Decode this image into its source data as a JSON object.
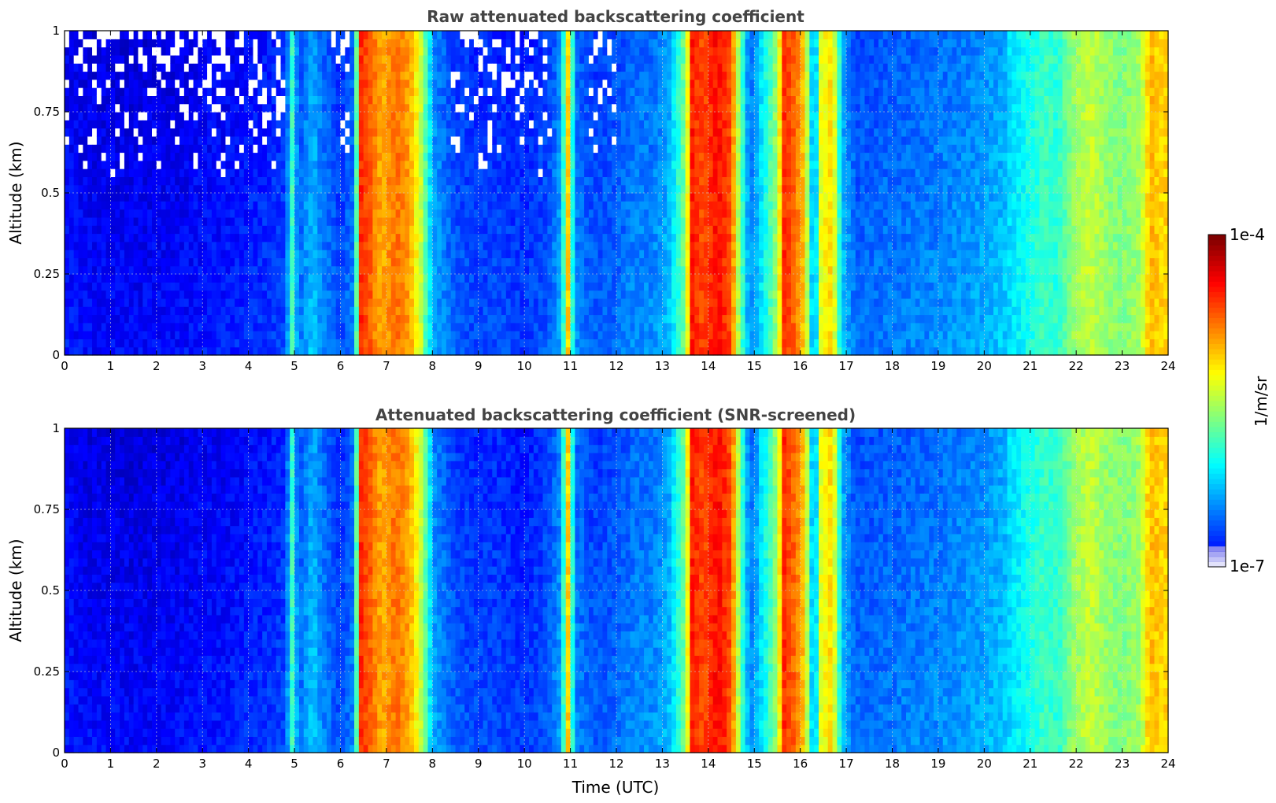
{
  "chart_data": [
    {
      "type": "heatmap",
      "title": "Raw attenuated backscattering coefficient",
      "xlabel": "",
      "ylabel": "Altitude (km)",
      "xlim": [
        0,
        24
      ],
      "ylim": [
        0,
        1
      ],
      "x_ticks": [
        "0",
        "1",
        "2",
        "3",
        "4",
        "5",
        "6",
        "7",
        "8",
        "9",
        "10",
        "11",
        "12",
        "13",
        "14",
        "15",
        "16",
        "17",
        "18",
        "19",
        "20",
        "21",
        "22",
        "23",
        "24"
      ],
      "y_ticks": [
        "0",
        "0.25",
        "0.5",
        "0.75",
        "1"
      ],
      "grid": true,
      "colormap": "jet",
      "color_scale": "log",
      "time_profile": {
        "x_hours": [
          0.0,
          0.5,
          1.0,
          1.5,
          2.0,
          2.5,
          3.0,
          3.5,
          4.0,
          4.5,
          4.8,
          4.95,
          5.1,
          5.4,
          5.6,
          6.0,
          6.3,
          6.45,
          6.6,
          6.9,
          7.2,
          7.5,
          7.75,
          8.0,
          8.5,
          9.0,
          9.5,
          10.0,
          10.5,
          10.8,
          10.95,
          11.1,
          11.5,
          12.0,
          12.4,
          12.8,
          13.2,
          13.5,
          13.65,
          13.9,
          14.2,
          14.5,
          14.7,
          14.9,
          15.2,
          15.5,
          15.65,
          15.9,
          16.1,
          16.3,
          16.45,
          16.7,
          16.9,
          17.2,
          18.0,
          19.0,
          20.0,
          20.5,
          21.0,
          21.3,
          21.6,
          22.0,
          22.3,
          22.7,
          23.0,
          23.4,
          23.6,
          23.8,
          24.0
        ],
        "log10_value": [
          -6.55,
          -6.6,
          -6.6,
          -6.62,
          -6.6,
          -6.6,
          -6.55,
          -6.55,
          -6.5,
          -6.45,
          -6.4,
          -5.7,
          -6.3,
          -6.0,
          -6.2,
          -6.4,
          -6.2,
          -4.5,
          -4.6,
          -4.9,
          -4.7,
          -4.85,
          -5.3,
          -6.1,
          -6.35,
          -6.4,
          -6.4,
          -6.45,
          -6.35,
          -6.1,
          -5.0,
          -6.2,
          -6.35,
          -6.3,
          -6.2,
          -6.2,
          -6.0,
          -5.5,
          -4.45,
          -4.6,
          -4.4,
          -4.6,
          -5.6,
          -6.2,
          -5.9,
          -5.4,
          -4.5,
          -4.7,
          -5.0,
          -6.3,
          -5.2,
          -5.0,
          -6.0,
          -6.3,
          -6.25,
          -6.2,
          -6.1,
          -6.0,
          -5.8,
          -5.7,
          -5.75,
          -5.4,
          -5.3,
          -5.45,
          -5.5,
          -5.4,
          -4.9,
          -5.0,
          -5.0
        ]
      },
      "noise_masked": false
    },
    {
      "type": "heatmap",
      "title": "Attenuated backscattering coefficient (SNR-screened)",
      "xlabel": "Time (UTC)",
      "ylabel": "Altitude (km)",
      "xlim": [
        0,
        24
      ],
      "ylim": [
        0,
        1
      ],
      "x_ticks": [
        "0",
        "1",
        "2",
        "3",
        "4",
        "5",
        "6",
        "7",
        "8",
        "9",
        "10",
        "11",
        "12",
        "13",
        "14",
        "15",
        "16",
        "17",
        "18",
        "19",
        "20",
        "21",
        "22",
        "23",
        "24"
      ],
      "y_ticks": [
        "0",
        "0.25",
        "0.5",
        "0.75",
        "1"
      ],
      "grid": true,
      "colormap": "jet",
      "color_scale": "log",
      "noise_masked": true
    }
  ],
  "colorbar": {
    "label": "1/m/sr",
    "max_label": "1e-4",
    "min_label": "1e-7",
    "min_value": 1e-07,
    "max_value": 0.0001
  },
  "colors": {
    "title": "#444444",
    "axis": "#000000",
    "grid": "#d0d0d0"
  }
}
